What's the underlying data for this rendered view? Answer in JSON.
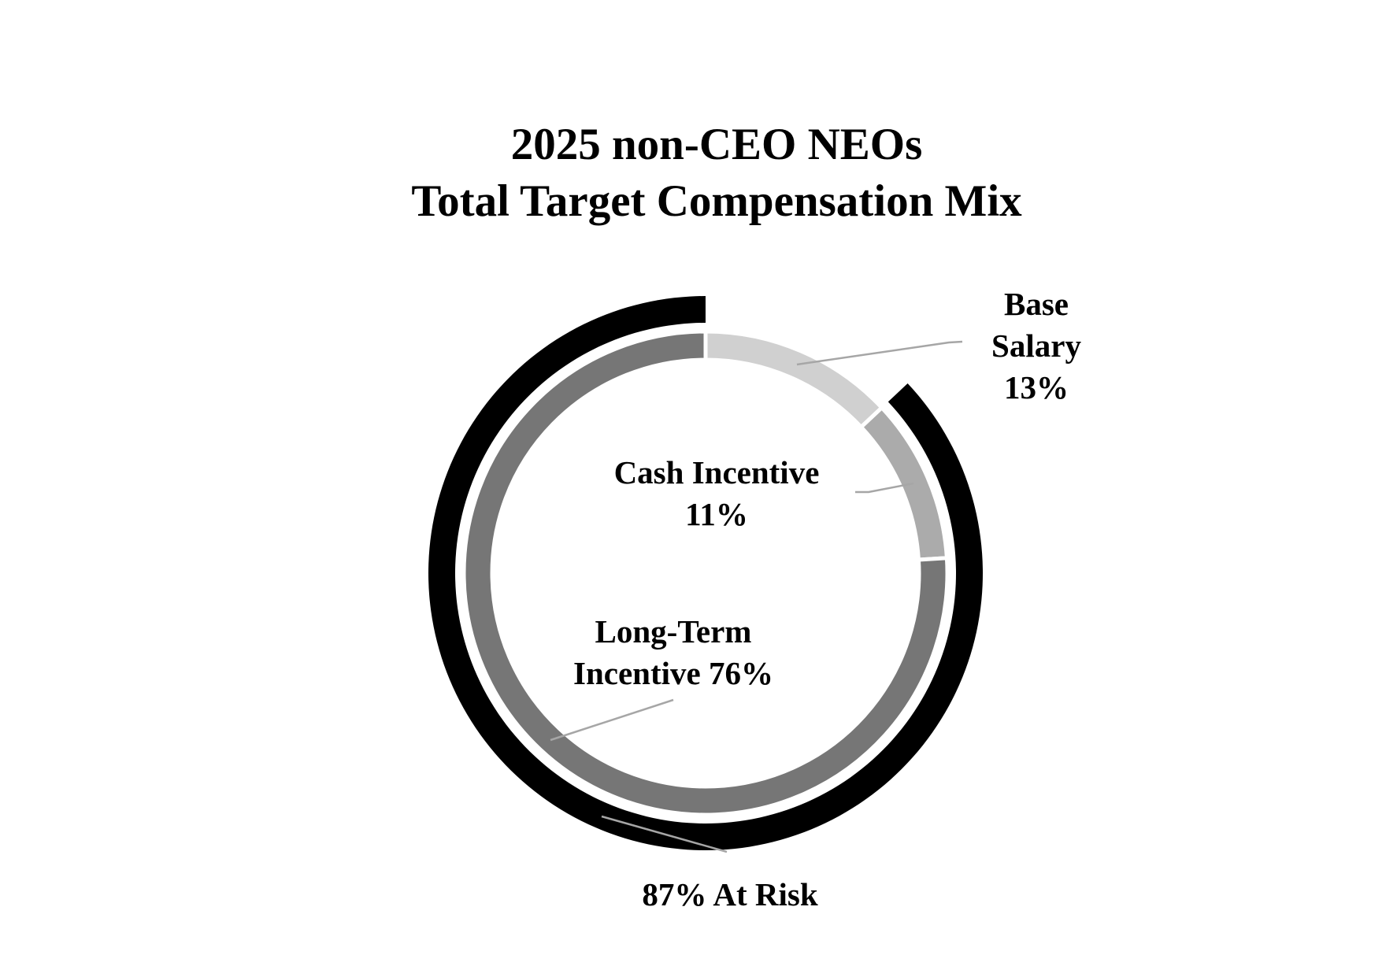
{
  "chart_data": {
    "type": "donut",
    "title": "2025 non-CEO NEOs",
    "subtitle": "Total Target Compensation Mix",
    "categories": [
      "Base Salary",
      "Cash Incentive",
      "Long-Term Incentive"
    ],
    "values": [
      13,
      11,
      76
    ],
    "value_labels": [
      "13%",
      "11%",
      "76%"
    ],
    "colors": [
      "#d0d0d0",
      "#ababab",
      "#767676"
    ],
    "outer_ring": {
      "label": "At Risk",
      "value": 87,
      "value_label": "87%",
      "color": "#000000"
    }
  }
}
